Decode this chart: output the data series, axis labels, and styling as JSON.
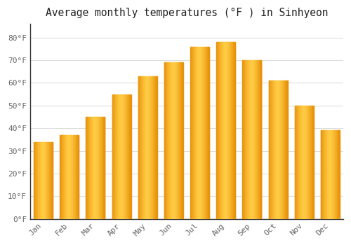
{
  "title": "Average monthly temperatures (°F ) in Sinhyeon",
  "months": [
    "Jan",
    "Feb",
    "Mar",
    "Apr",
    "May",
    "Jun",
    "Jul",
    "Aug",
    "Sep",
    "Oct",
    "Nov",
    "Dec"
  ],
  "values": [
    34,
    37,
    45,
    55,
    63,
    69,
    76,
    78,
    70,
    61,
    50,
    39
  ],
  "bar_color_left": "#E8920A",
  "bar_color_mid": "#FFCC44",
  "bar_color_right": "#E8920A",
  "background_color": "#FFFFFF",
  "grid_color": "#DDDDDD",
  "yticks": [
    0,
    10,
    20,
    30,
    40,
    50,
    60,
    70,
    80
  ],
  "ytick_labels": [
    "0°F",
    "10°F",
    "20°F",
    "30°F",
    "40°F",
    "50°F",
    "60°F",
    "70°F",
    "80°F"
  ],
  "ylim": [
    0,
    86
  ],
  "title_fontsize": 10.5,
  "tick_fontsize": 8,
  "font_family": "monospace",
  "axis_color": "#333333",
  "tick_color": "#666666"
}
